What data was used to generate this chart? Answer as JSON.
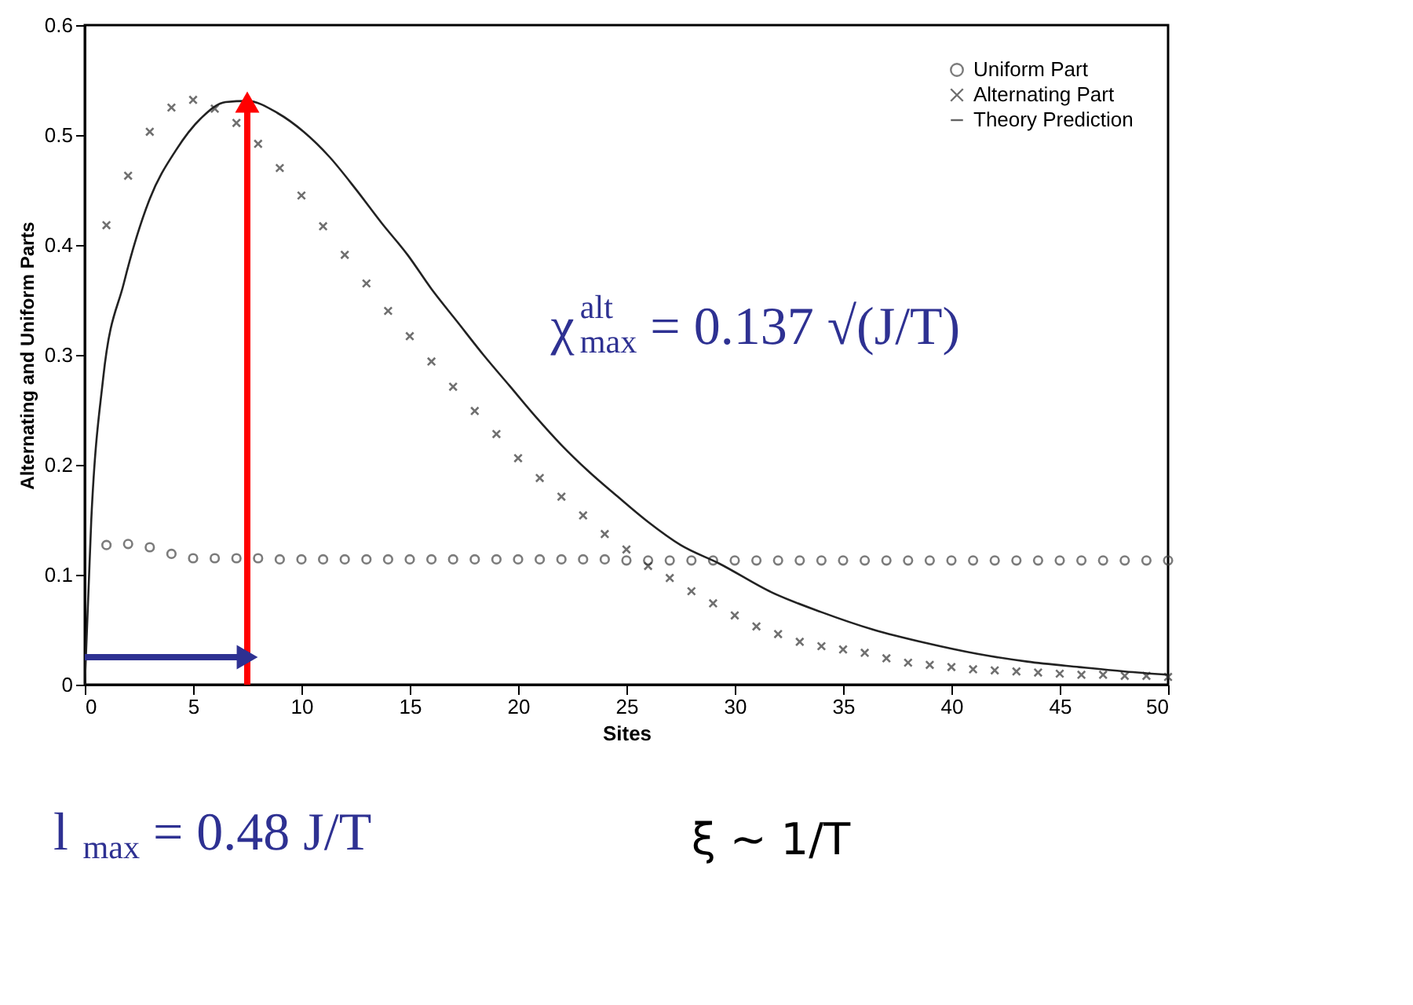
{
  "chart_data": {
    "type": "scatter",
    "xlabel": "Sites",
    "ylabel": "Alternating and Uniform Parts",
    "xlim": [
      0,
      50
    ],
    "ylim": [
      0,
      0.6
    ],
    "xticks": [
      0,
      5,
      10,
      15,
      20,
      25,
      30,
      35,
      40,
      45,
      50
    ],
    "yticks": [
      0,
      0.1,
      0.2,
      0.3,
      0.4,
      0.5,
      0.6
    ],
    "grid": false,
    "legend": "top right",
    "series": [
      {
        "name": "Uniform Part",
        "marker": "circle",
        "color": "#444444",
        "x": [
          1,
          2,
          3,
          4,
          5,
          6,
          7,
          8,
          9,
          10,
          11,
          12,
          13,
          14,
          15,
          16,
          17,
          18,
          19,
          20,
          21,
          22,
          23,
          24,
          25,
          26,
          27,
          28,
          29,
          30,
          31,
          32,
          33,
          34,
          35,
          36,
          37,
          38,
          39,
          40,
          41,
          42,
          43,
          44,
          45,
          46,
          47,
          48,
          49,
          50
        ],
        "values": [
          0.127,
          0.128,
          0.125,
          0.119,
          0.115,
          0.115,
          0.115,
          0.115,
          0.114,
          0.114,
          0.114,
          0.114,
          0.114,
          0.114,
          0.114,
          0.114,
          0.114,
          0.114,
          0.114,
          0.114,
          0.114,
          0.114,
          0.114,
          0.114,
          0.113,
          0.113,
          0.113,
          0.113,
          0.113,
          0.113,
          0.113,
          0.113,
          0.113,
          0.113,
          0.113,
          0.113,
          0.113,
          0.113,
          0.113,
          0.113,
          0.113,
          0.113,
          0.113,
          0.113,
          0.113,
          0.113,
          0.113,
          0.113,
          0.113,
          0.113
        ]
      },
      {
        "name": "Alternating Part",
        "marker": "cross",
        "color": "#333333",
        "x": [
          1,
          2,
          3,
          4,
          5,
          6,
          7,
          8,
          9,
          10,
          11,
          12,
          13,
          14,
          15,
          16,
          17,
          18,
          19,
          20,
          21,
          22,
          23,
          24,
          25,
          26,
          27,
          28,
          29,
          30,
          31,
          32,
          33,
          34,
          35,
          36,
          37,
          38,
          39,
          40,
          41,
          42,
          43,
          44,
          45,
          46,
          47,
          48,
          49,
          50
        ],
        "values": [
          0.418,
          0.463,
          0.503,
          0.525,
          0.532,
          0.524,
          0.511,
          0.492,
          0.47,
          0.445,
          0.417,
          0.391,
          0.365,
          0.34,
          0.317,
          0.294,
          0.271,
          0.249,
          0.228,
          0.206,
          0.188,
          0.171,
          0.154,
          0.137,
          0.123,
          0.108,
          0.097,
          0.085,
          0.074,
          0.063,
          0.053,
          0.046,
          0.039,
          0.035,
          0.032,
          0.029,
          0.024,
          0.02,
          0.018,
          0.016,
          0.014,
          0.013,
          0.012,
          0.011,
          0.01,
          0.009,
          0.009,
          0.008,
          0.008,
          0.007
        ]
      },
      {
        "name": "Theory Prediction",
        "type": "line",
        "marker": "none",
        "line_style": "solid",
        "color": "#222222",
        "x": [
          0,
          0.3,
          0.85,
          1.8,
          3.0,
          4.2,
          5.4,
          6.5,
          7.5,
          8.9,
          10.1,
          11.3,
          12.5,
          13.7,
          14.9,
          16.0,
          17.2,
          18.4,
          19.6,
          20.8,
          22.0,
          23.2,
          24.6,
          26.0,
          27.5,
          29.3,
          31.7,
          34.0,
          36.4,
          38.8,
          41.2,
          43.5,
          45.9,
          48.0,
          50
        ],
        "values": [
          0,
          0.15,
          0.279,
          0.365,
          0.442,
          0.486,
          0.516,
          0.53,
          0.531,
          0.52,
          0.503,
          0.48,
          0.451,
          0.42,
          0.391,
          0.36,
          0.33,
          0.3,
          0.272,
          0.244,
          0.218,
          0.195,
          0.171,
          0.148,
          0.127,
          0.11,
          0.084,
          0.066,
          0.05,
          0.038,
          0.028,
          0.021,
          0.016,
          0.012,
          0.009
        ]
      },
      {
        "type": "line",
        "line_style": "solid",
        "color": "#ff0000",
        "x": [
          7.5,
          7.5
        ],
        "values": [
          0,
          0.53
        ]
      },
      {
        "type": "line",
        "line_style": "solid",
        "color": "#2e3192",
        "x": [
          0,
          7.5
        ],
        "values": [
          0.025,
          0.025
        ]
      }
    ],
    "annotations": [
      "χ$^{alt}$$_{max}$ = 0.137 √(J/T)",
      "l$_{max}$ = 0.48 J/T",
      "ξ ~ 1/T"
    ]
  }
}
